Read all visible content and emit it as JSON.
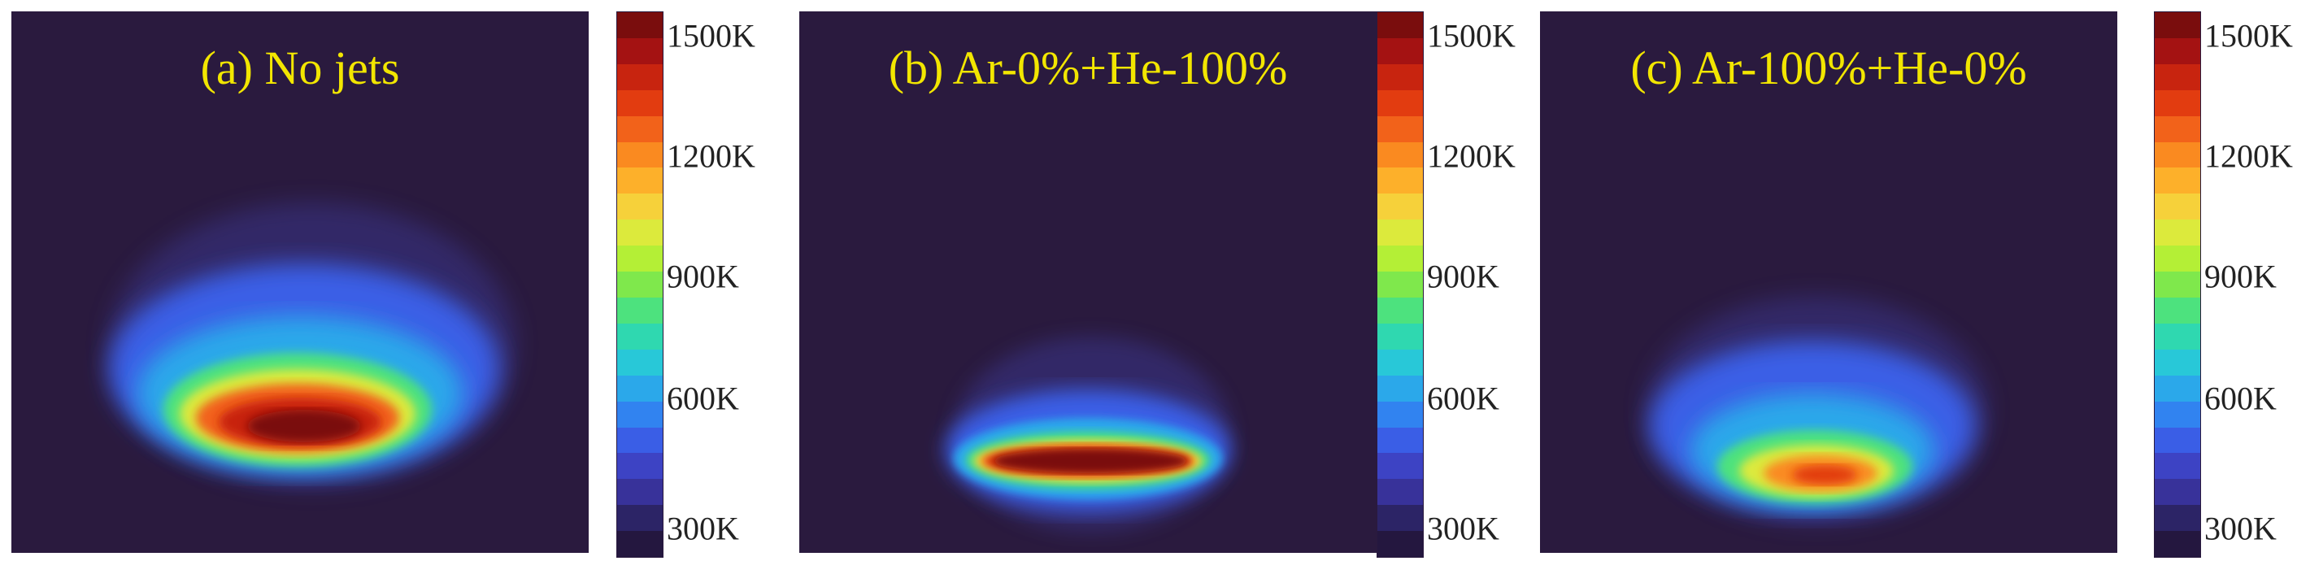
{
  "figure": {
    "colormap": [
      "#7a0d0d",
      "#a41212",
      "#c8240f",
      "#e23c10",
      "#f2621a",
      "#fa8a20",
      "#fdb02a",
      "#f6d13a",
      "#dcea3c",
      "#b4ef36",
      "#7fe84c",
      "#4de27e",
      "#2fd8b0",
      "#28c8d8",
      "#2ba8ea",
      "#3183f0",
      "#3a5ee6",
      "#3d43c4",
      "#38329a",
      "#2c2466",
      "#24173f"
    ],
    "panels": [
      {
        "label": "(a) No jets",
        "peak_level": "1500K",
        "colorbar_ticks": [
          "1500K",
          "1200K",
          "900K",
          "600K",
          "300K"
        ]
      },
      {
        "label": "(b) Ar-0%+He-100%",
        "peak_level": "1500K",
        "colorbar_ticks": [
          "1500K",
          "1200K",
          "900K",
          "600K",
          "300K"
        ]
      },
      {
        "label": "(c) Ar-100%+He-0%",
        "peak_level": "1200K",
        "colorbar_ticks": [
          "1500K",
          "1200K",
          "900K",
          "600K",
          "300K"
        ]
      }
    ]
  }
}
